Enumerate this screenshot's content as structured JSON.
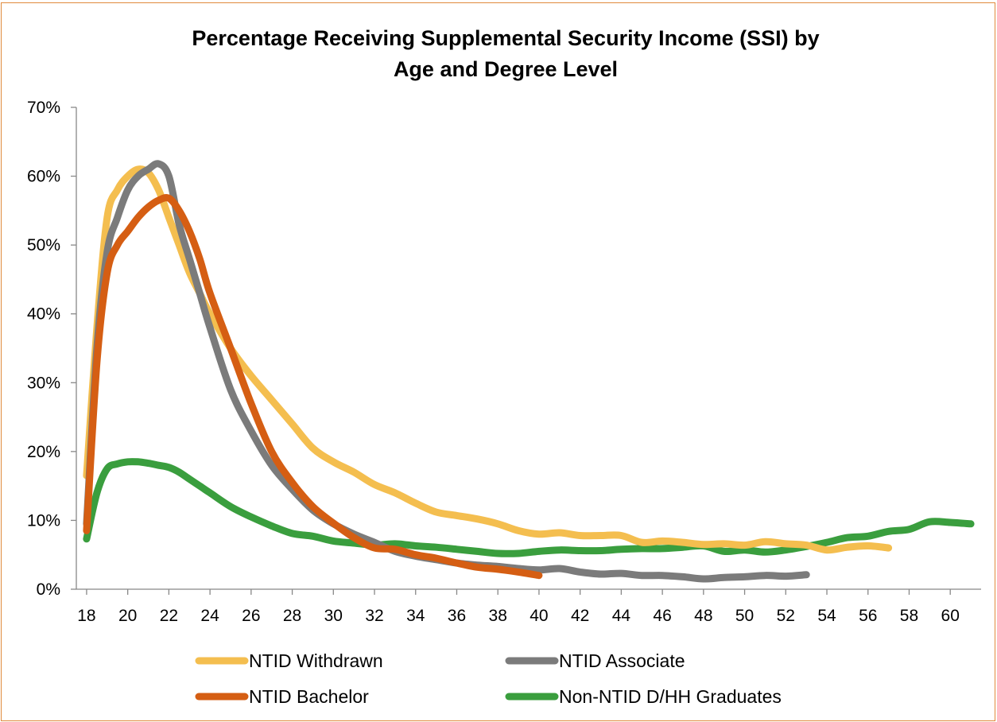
{
  "chart_data": {
    "type": "line",
    "title_lines": [
      "Percentage Receiving Supplemental Security Income (SSI) by",
      "Age and Degree Level"
    ],
    "xlabel": "",
    "ylabel": "",
    "xlim": [
      17.5,
      61.5
    ],
    "ylim": [
      0,
      70
    ],
    "x_ticks": [
      "18",
      "20",
      "22",
      "24",
      "26",
      "28",
      "30",
      "32",
      "34",
      "36",
      "38",
      "40",
      "42",
      "44",
      "46",
      "48",
      "50",
      "52",
      "54",
      "56",
      "58",
      "60"
    ],
    "x_tick_values": [
      18,
      20,
      22,
      24,
      26,
      28,
      30,
      32,
      34,
      36,
      38,
      40,
      42,
      44,
      46,
      48,
      50,
      52,
      54,
      56,
      58,
      60
    ],
    "y_ticks": [
      "0%",
      "10%",
      "20%",
      "30%",
      "40%",
      "50%",
      "60%",
      "70%"
    ],
    "y_tick_values": [
      0,
      10,
      20,
      30,
      40,
      50,
      60,
      70
    ],
    "grid": false,
    "legend_position": "bottom",
    "series": [
      {
        "name": "NTID Withdrawn",
        "color": "#F4BE4F",
        "x": [
          18,
          18.5,
          19,
          19.5,
          20,
          20.5,
          21,
          21.5,
          22,
          22.5,
          23,
          23.5,
          24,
          25,
          26,
          27,
          28,
          29,
          30,
          31,
          32,
          33,
          34,
          35,
          36,
          37,
          38,
          39,
          40,
          41,
          42,
          43,
          44,
          45,
          46,
          47,
          48,
          49,
          50,
          51,
          52,
          53,
          54,
          55,
          56,
          57
        ],
        "y": [
          16.5,
          38,
          54,
          58,
          60,
          61,
          60.5,
          58,
          54,
          50,
          46,
          43,
          40,
          35,
          31,
          27.5,
          24,
          20.5,
          18.5,
          17,
          15.2,
          14,
          12.5,
          11.2,
          10.7,
          10.2,
          9.5,
          8.5,
          8,
          8.2,
          7.8,
          7.8,
          7.8,
          6.8,
          7,
          6.8,
          6.5,
          6.6,
          6.4,
          6.9,
          6.6,
          6.4,
          5.7,
          6.1,
          6.3,
          6
        ]
      },
      {
        "name": "NTID Associate",
        "color": "#7B7B7B",
        "x": [
          18,
          18.5,
          19,
          19.5,
          20,
          20.5,
          21,
          21.5,
          22,
          22.5,
          23,
          23.5,
          24,
          25,
          26,
          27,
          28,
          29,
          30,
          31,
          32,
          33,
          34,
          35,
          36,
          37,
          38,
          39,
          40,
          41,
          42,
          43,
          44,
          45,
          46,
          47,
          48,
          49,
          50,
          51,
          52,
          53
        ],
        "y": [
          9.5,
          35,
          49,
          54,
          58,
          60,
          61,
          61.8,
          60,
          53,
          48,
          43,
          38,
          29,
          23,
          18,
          14.5,
          11.5,
          9.5,
          8,
          6.8,
          5.5,
          4.8,
          4.3,
          3.8,
          3.5,
          3.3,
          3,
          2.8,
          3,
          2.5,
          2.2,
          2.3,
          2,
          2,
          1.8,
          1.5,
          1.7,
          1.8,
          2,
          1.9,
          2.1
        ]
      },
      {
        "name": "NTID Bachelor",
        "color": "#D55E13",
        "x": [
          18,
          18.5,
          19,
          19.5,
          20,
          20.5,
          21,
          21.5,
          22,
          22.5,
          23,
          23.5,
          24,
          25,
          26,
          27,
          28,
          29,
          30,
          31,
          32,
          33,
          34,
          35,
          36,
          37,
          38,
          39,
          40
        ],
        "y": [
          8.5,
          33,
          46,
          50,
          52,
          54,
          55.5,
          56.5,
          56.8,
          55,
          52,
          48,
          43,
          35,
          27,
          20,
          15.5,
          12,
          9.6,
          7.5,
          6,
          5.8,
          5,
          4.5,
          3.8,
          3.2,
          2.9,
          2.5,
          2
        ]
      },
      {
        "name": "Non-NTID D/HH Graduates",
        "color": "#3A9E3E",
        "x": [
          18,
          18.5,
          19,
          19.5,
          20,
          20.5,
          21,
          21.5,
          22,
          22.5,
          23,
          23.5,
          24,
          25,
          26,
          27,
          28,
          29,
          30,
          31,
          32,
          33,
          34,
          35,
          36,
          37,
          38,
          39,
          40,
          41,
          42,
          43,
          44,
          45,
          46,
          47,
          48,
          49,
          50,
          51,
          52,
          53,
          54,
          55,
          56,
          57,
          58,
          59,
          60,
          61
        ],
        "y": [
          7.3,
          14,
          17.5,
          18.2,
          18.5,
          18.5,
          18.3,
          18,
          17.7,
          17,
          16,
          15,
          14,
          12,
          10.5,
          9.2,
          8.1,
          7.7,
          7,
          6.7,
          6.4,
          6.6,
          6.3,
          6.1,
          5.8,
          5.5,
          5.2,
          5.2,
          5.5,
          5.7,
          5.6,
          5.6,
          5.8,
          5.9,
          5.9,
          6.1,
          6.3,
          5.5,
          5.7,
          5.4,
          5.7,
          6.2,
          6.8,
          7.5,
          7.7,
          8.4,
          8.7,
          9.8,
          9.7,
          9.5
        ]
      }
    ]
  }
}
